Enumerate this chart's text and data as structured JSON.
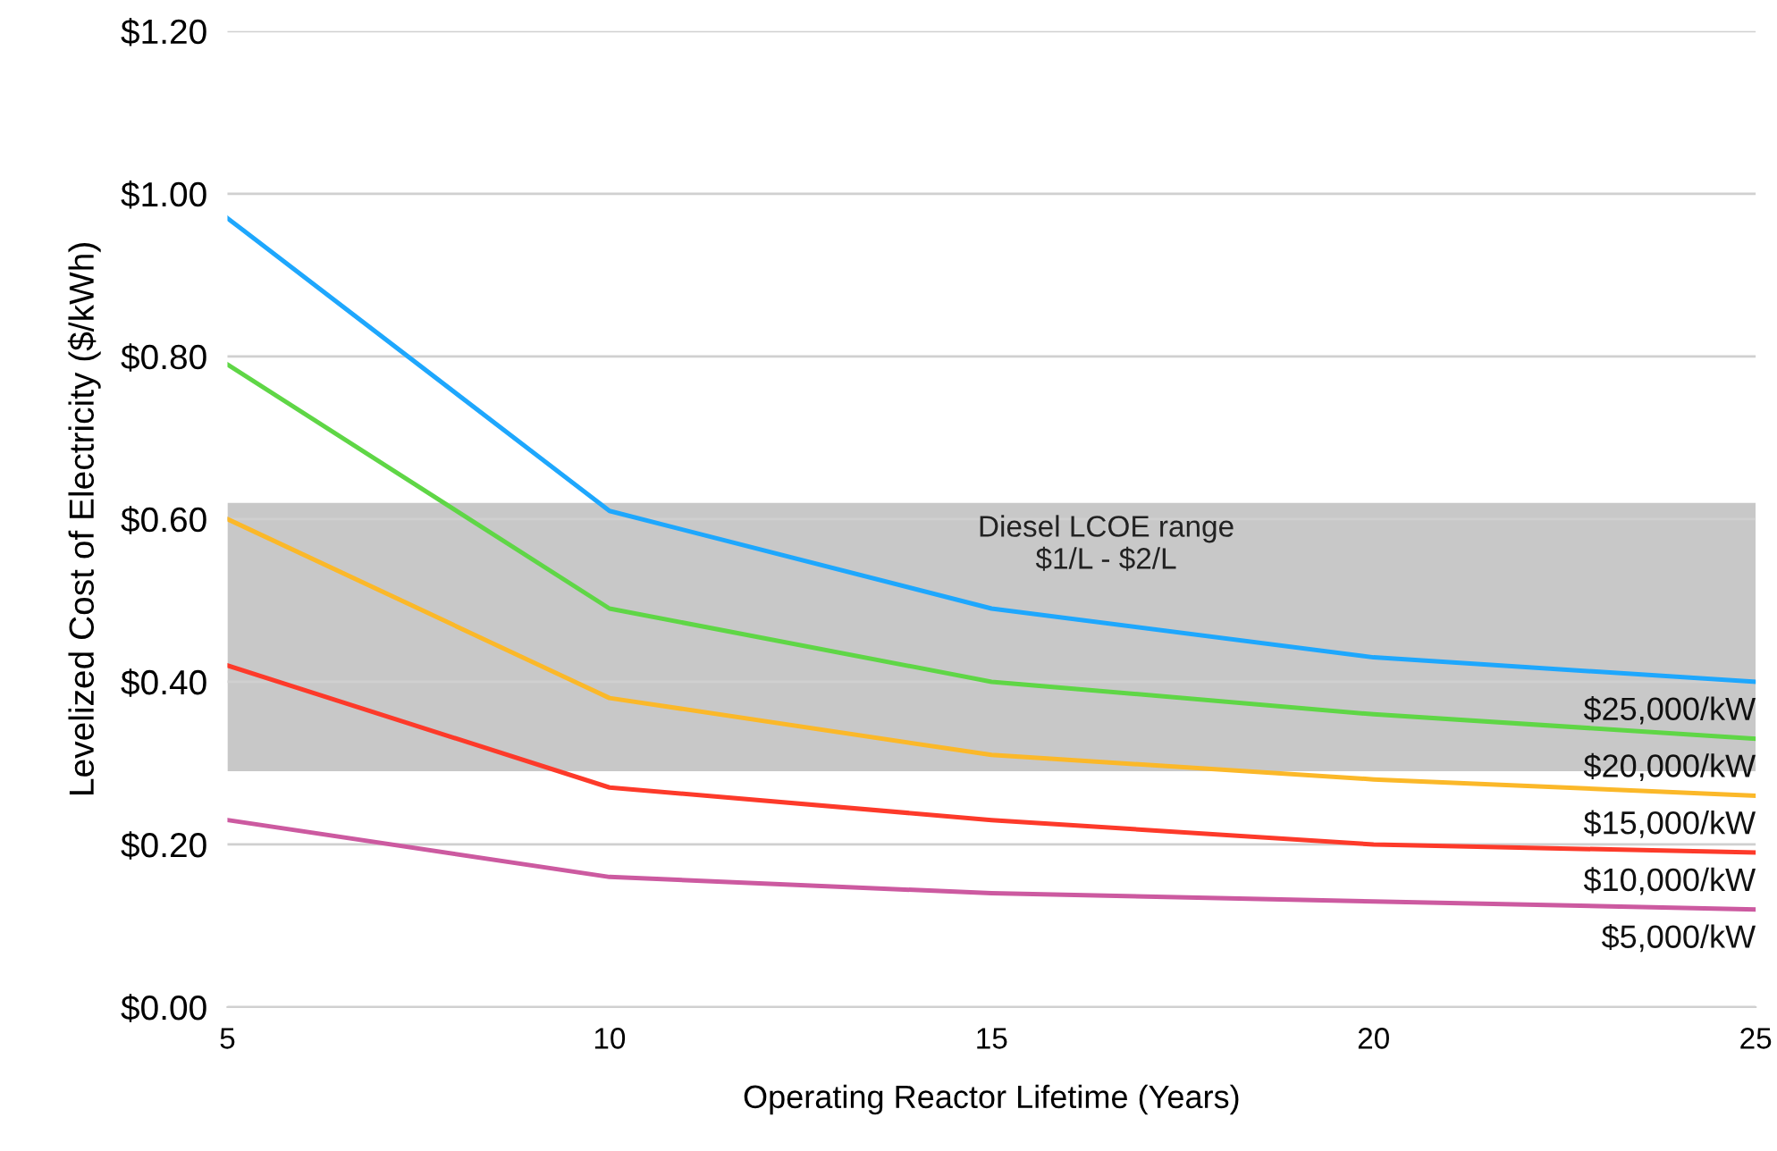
{
  "chart_data": {
    "type": "line",
    "xlabel": "Operating Reactor Lifetime (Years)",
    "ylabel": "Levelized Cost of Electricity ($/kWh)",
    "x": [
      5,
      10,
      15,
      20,
      25
    ],
    "series": [
      {
        "name": "$25,000/kW",
        "color": "#1ea7fd",
        "values": [
          0.97,
          0.61,
          0.49,
          0.43,
          0.4
        ]
      },
      {
        "name": "$20,000/kW",
        "color": "#5fd646",
        "values": [
          0.79,
          0.49,
          0.4,
          0.36,
          0.33
        ]
      },
      {
        "name": "$15,000/kW",
        "color": "#fbb829",
        "values": [
          0.6,
          0.38,
          0.31,
          0.28,
          0.26
        ]
      },
      {
        "name": "$10,000/kW",
        "color": "#fd3a2a",
        "values": [
          0.42,
          0.27,
          0.23,
          0.2,
          0.19
        ]
      },
      {
        "name": "$5,000/kW",
        "color": "#cc5aa0",
        "values": [
          0.23,
          0.16,
          0.14,
          0.13,
          0.12
        ]
      }
    ],
    "bands": [
      {
        "axis": "y",
        "from": 0.29,
        "to": 0.62,
        "label": "Diesel LCOE range\n$1/L - $2/L",
        "color": "#c8c8c8"
      }
    ],
    "xlim": [
      5,
      25
    ],
    "xticks": [
      5,
      10,
      15,
      20,
      25
    ],
    "ylim": [
      0,
      1.2
    ],
    "yticks": [
      {
        "value": 0,
        "label": "$0.00"
      },
      {
        "value": 0.2,
        "label": "$0.20"
      },
      {
        "value": 0.4,
        "label": "$0.40"
      },
      {
        "value": 0.6,
        "label": "$0.60"
      },
      {
        "value": 0.8,
        "label": "$0.80"
      },
      {
        "value": 1.0,
        "label": "$1.00"
      },
      {
        "value": 1.2,
        "label": "$1.20"
      }
    ],
    "grid": "y",
    "legend": false,
    "marker": "none",
    "line_style": "solid"
  }
}
